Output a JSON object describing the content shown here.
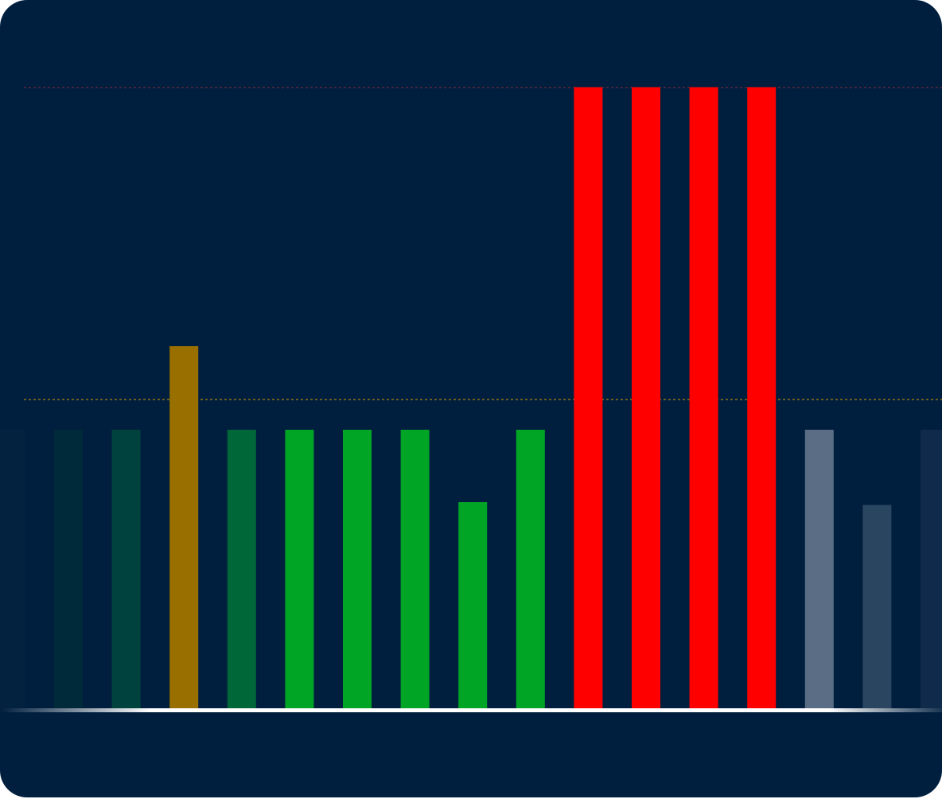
{
  "chart_data": {
    "type": "bar",
    "title": "",
    "xlabel": "",
    "ylabel": "",
    "ylim": [
      0,
      223
    ],
    "grid": false,
    "values": [
      100,
      100,
      100,
      130,
      100,
      100,
      100,
      100,
      74,
      100,
      223,
      223,
      223,
      223,
      100,
      73,
      100
    ],
    "colors": [
      "#02223f",
      "#002a3a",
      "#00423e",
      "#997000",
      "#006838",
      "#00a526",
      "#00a526",
      "#00a526",
      "#00a526",
      "#00a526",
      "#ff0000",
      "#ff0000",
      "#ff0000",
      "#ff0000",
      "#5a6d85",
      "#2a4560",
      "#0f2a4a"
    ],
    "thresholds": [
      {
        "value": 223,
        "color": "#8a2a3a",
        "style": "dotted"
      },
      {
        "value": 111,
        "color": "#d69a00",
        "style": "dotted"
      }
    ],
    "baseline_color": "#ffffff",
    "background": "#001f3f"
  }
}
